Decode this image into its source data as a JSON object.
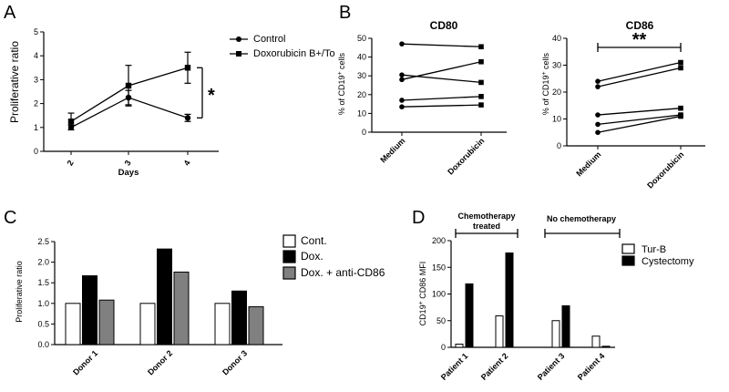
{
  "panels": {
    "a": "A",
    "b": "B",
    "c": "C",
    "d": "D"
  },
  "colors": {
    "black": "#000000",
    "gray": "#808080",
    "white": "#ffffff"
  },
  "chart_data": [
    {
      "id": "A",
      "type": "line",
      "xlabel": "Days",
      "ylabel": "Proliferative ratio",
      "x": [
        "2",
        "3",
        "4"
      ],
      "ylim": [
        0,
        5
      ],
      "yticks": [
        "0",
        "1",
        "2",
        "3",
        "4",
        "5"
      ],
      "series": [
        {
          "name": "Control",
          "marker": "circle",
          "values": [
            1.0,
            2.25,
            1.4
          ],
          "errors": [
            0.1,
            0.3,
            0.15
          ]
        },
        {
          "name": "Doxorubicin B+/To",
          "marker": "square",
          "values": [
            1.25,
            2.75,
            3.5
          ],
          "errors": [
            0.35,
            0.85,
            0.65
          ]
        }
      ],
      "significance": "*"
    },
    {
      "id": "B1",
      "type": "line",
      "title": "CD80",
      "ylabel": "% of CD19+ cells",
      "ylabel_main": "% of CD19",
      "ylabel_sup": "+",
      "ylabel_tail": " cells",
      "x": [
        "Medium",
        "Doxorubicin"
      ],
      "ylim": [
        0,
        50
      ],
      "yticks": [
        "0",
        "10",
        "20",
        "30",
        "40",
        "50"
      ],
      "pairs": [
        [
          47,
          45.5
        ],
        [
          30.5,
          26.5
        ],
        [
          28,
          37.5
        ],
        [
          17,
          19
        ],
        [
          13.5,
          14.5
        ]
      ]
    },
    {
      "id": "B2",
      "type": "line",
      "title": "CD86",
      "ylabel": "% of CD19+ cells",
      "ylabel_main": "% of CD19",
      "ylabel_sup": "+",
      "ylabel_tail": " cells",
      "x": [
        "Medium",
        "Doxorubicin"
      ],
      "ylim": [
        0,
        40
      ],
      "yticks": [
        "0",
        "10",
        "20",
        "30",
        "40"
      ],
      "pairs": [
        [
          24,
          31
        ],
        [
          22,
          29
        ],
        [
          11.5,
          14
        ],
        [
          8,
          11.5
        ],
        [
          5,
          11
        ]
      ],
      "significance": "**"
    },
    {
      "id": "C",
      "type": "bar",
      "ylabel": "Proliferative ratio",
      "categories": [
        "Donor 1",
        "Donor 2",
        "Donor 3"
      ],
      "ylim": [
        0,
        2.5
      ],
      "yticks": [
        "0.0",
        "0.5",
        "1.0",
        "1.5",
        "2.0",
        "2.5"
      ],
      "series": [
        {
          "name": "Cont.",
          "fill": "white",
          "values": [
            1.0,
            1.0,
            1.0
          ]
        },
        {
          "name": "Dox.",
          "fill": "black",
          "values": [
            1.67,
            2.32,
            1.3
          ]
        },
        {
          "name": "Dox. + anti-CD86",
          "fill": "gray",
          "values": [
            1.08,
            1.76,
            0.92
          ]
        }
      ]
    },
    {
      "id": "D",
      "type": "bar",
      "ylabel": "CD19+ CD86 MFI",
      "ylabel_pre": "CD19",
      "ylabel_sup": "+",
      "ylabel_tail": " CD86 MFI",
      "categories": [
        "Patient 1",
        "Patient 2",
        "Patient 3",
        "Patient 4"
      ],
      "ylim": [
        0,
        200
      ],
      "yticks": [
        "0",
        "50",
        "100",
        "150",
        "200"
      ],
      "groups": [
        "Chemotherapy treated",
        "No chemotherapy"
      ],
      "group_lines": [
        [
          "Chemotherapy",
          "treated"
        ],
        [
          "No chemotherapy"
        ]
      ],
      "series": [
        {
          "name": "Tur-B",
          "fill": "white",
          "values": [
            6,
            59,
            50,
            21
          ]
        },
        {
          "name": "Cystectomy",
          "fill": "black",
          "values": [
            119,
            177,
            78,
            2
          ]
        }
      ]
    }
  ]
}
